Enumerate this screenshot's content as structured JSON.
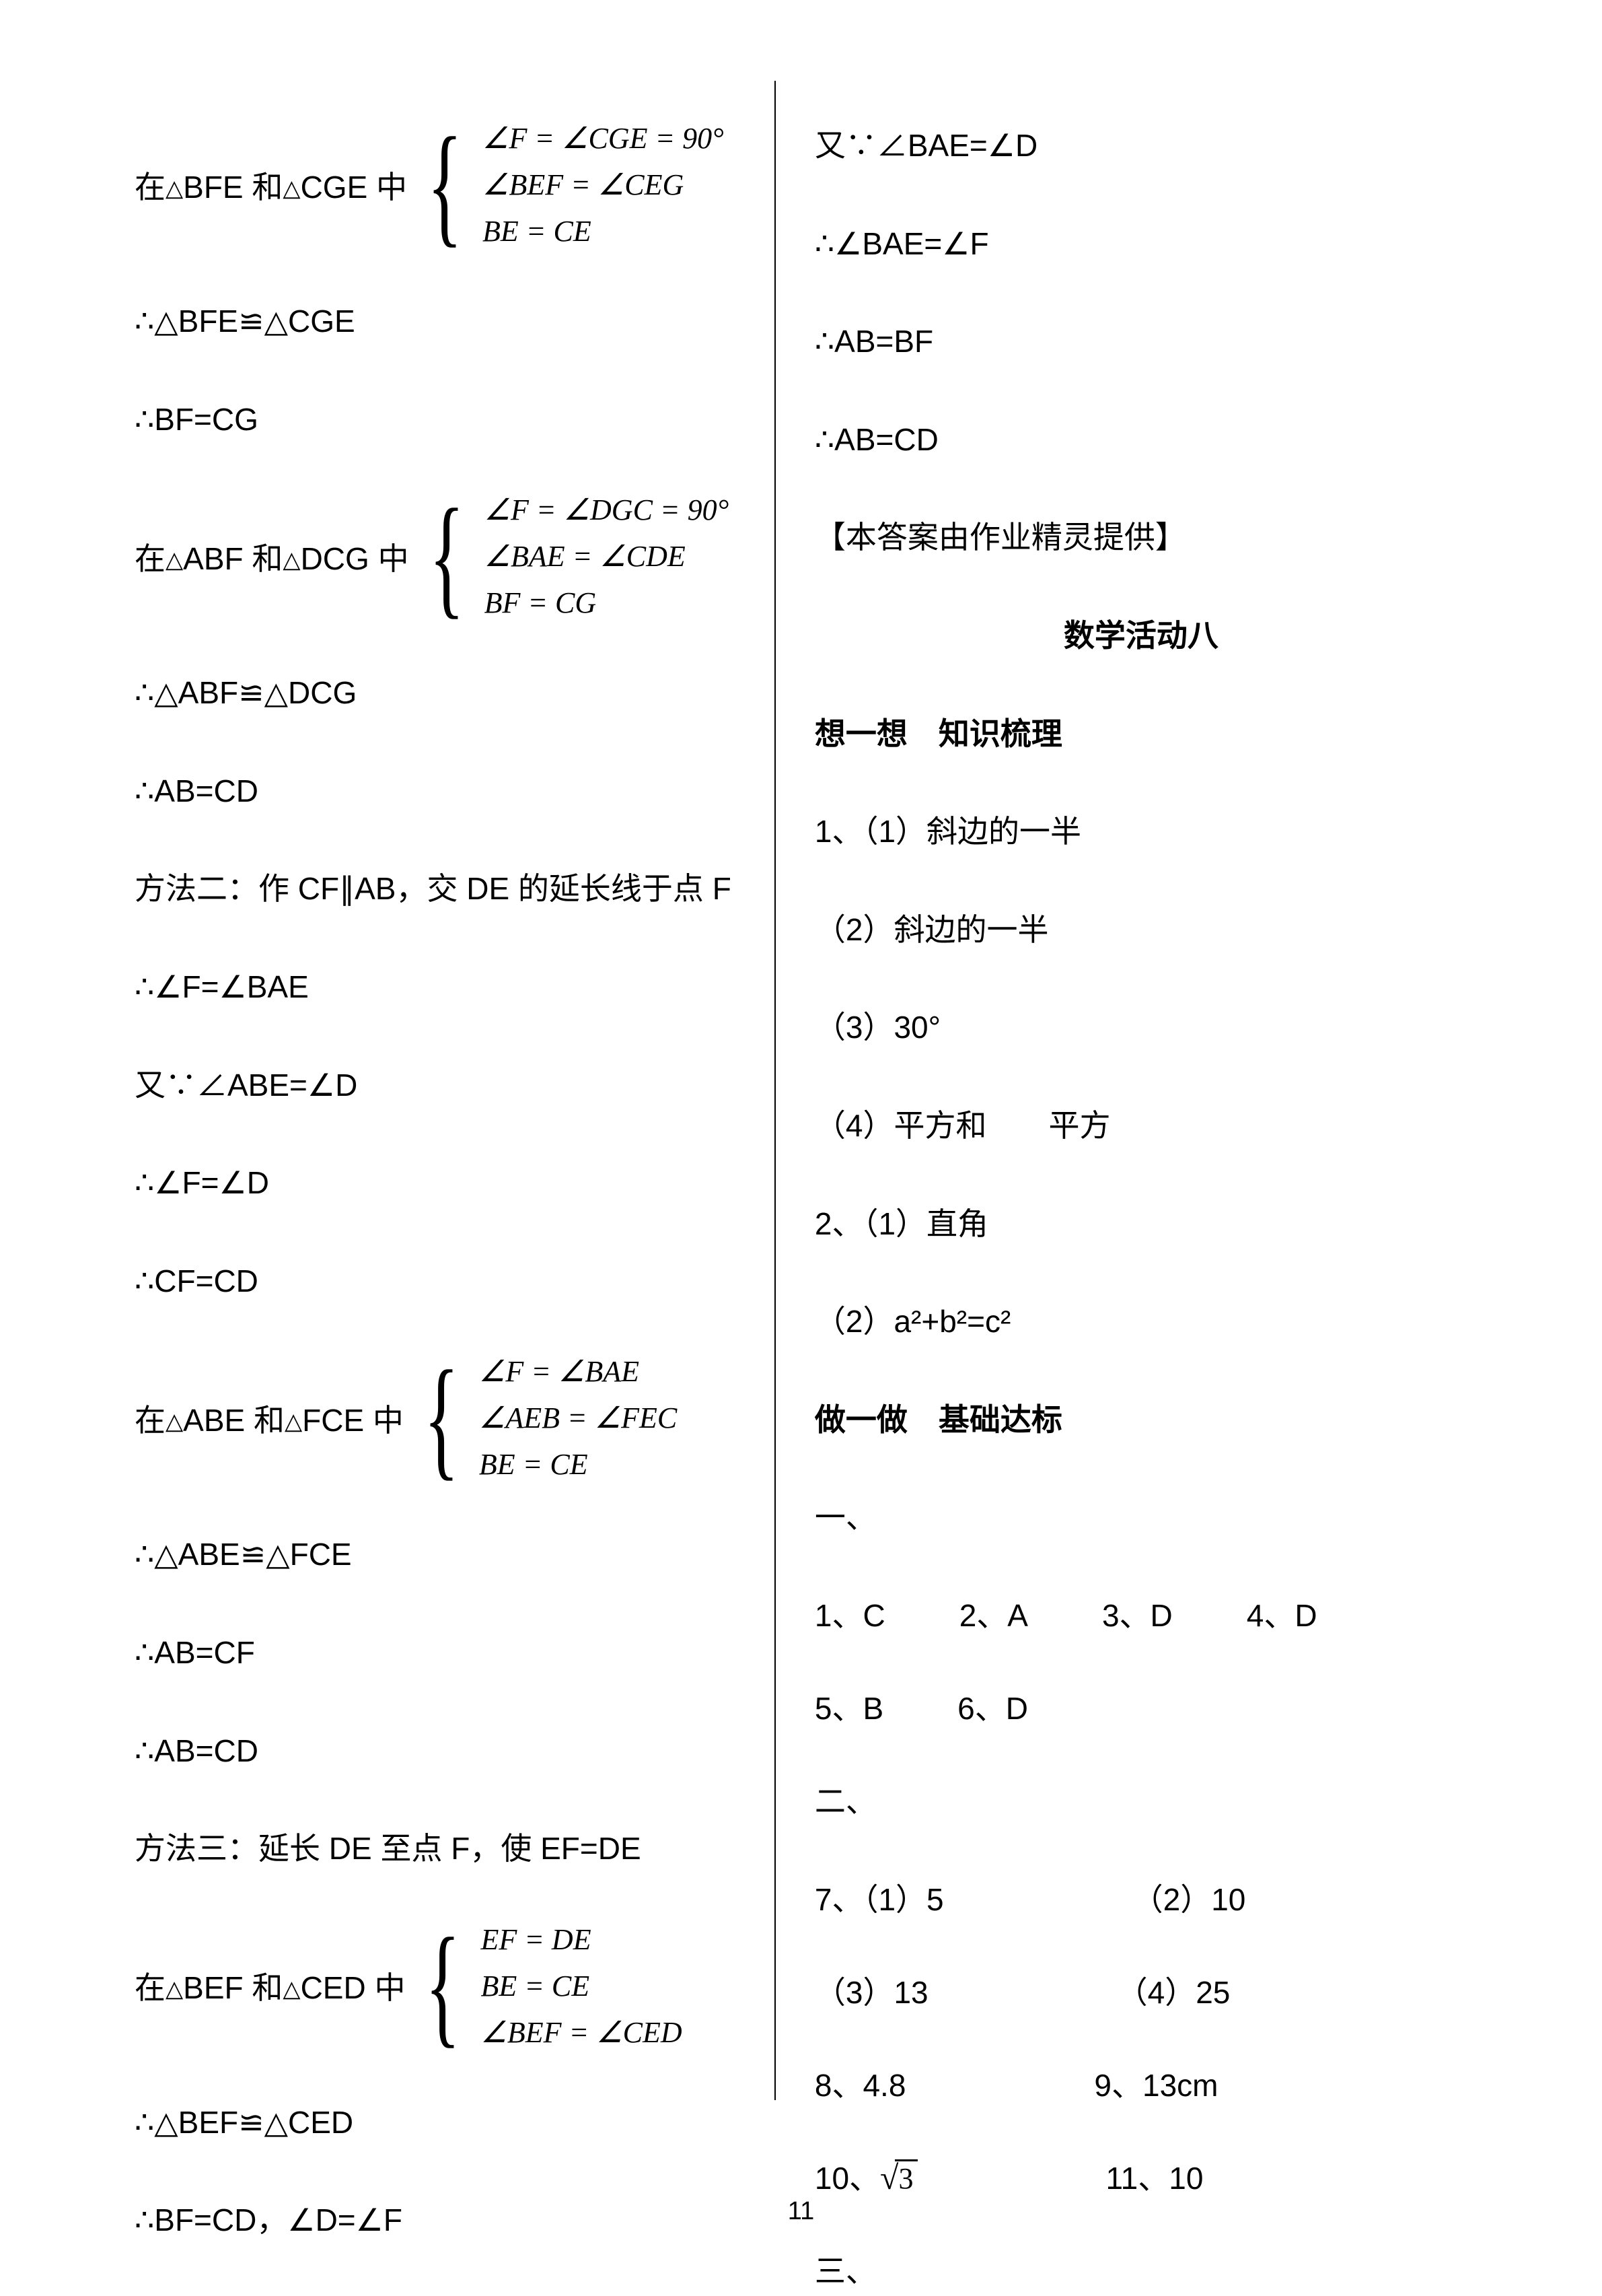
{
  "page_number": "11",
  "left": {
    "block1_prefix_a": "在",
    "block1_prefix_b": "BFE 和",
    "block1_prefix_c": "CGE 中",
    "block1_case1": "∠F  =  ∠CGE  =  90°",
    "block1_case2": "∠BEF  =  ∠CEG",
    "block1_case3": "BE  =  CE",
    "l1": "∴△BFE≌△CGE",
    "l2": "∴BF=CG",
    "block2_prefix_a": "在",
    "block2_prefix_b": "ABF 和",
    "block2_prefix_c": "DCG 中",
    "block2_case1": "∠F  =  ∠DGC  =  90°",
    "block2_case2": "∠BAE  =  ∠CDE",
    "block2_case3": "BF  =  CG",
    "l3": "∴△ABF≌△DCG",
    "l4": "∴AB=CD",
    "l5": "方法二：作 CF∥AB，交 DE 的延长线于点 F",
    "l6": "∴∠F=∠BAE",
    "l7": "又∵∠ABE=∠D",
    "l8": "∴∠F=∠D",
    "l9": "∴CF=CD",
    "block3_prefix_a": "在",
    "block3_prefix_b": "ABE 和",
    "block3_prefix_c": "FCE 中",
    "block3_case1": "∠F  =  ∠BAE",
    "block3_case2": "∠AEB  =  ∠FEC",
    "block3_case3": "BE  =  CE",
    "l10": "∴△ABE≌△FCE",
    "l11": "∴AB=CF",
    "l12": "∴AB=CD",
    "l13": "方法三：延长 DE 至点 F，使 EF=DE",
    "block4_prefix_a": "在",
    "block4_prefix_b": "BEF 和",
    "block4_prefix_c": "CED 中",
    "block4_case1": "EF  =  DE",
    "block4_case2": "BE  =  CE",
    "block4_case3": "∠BEF  =  ∠CED",
    "l14": "∴△BEF≌△CED",
    "l15": "∴BF=CD，∠D=∠F"
  },
  "right": {
    "r1": "又∵∠BAE=∠D",
    "r2": "∴∠BAE=∠F",
    "r3": "∴AB=BF",
    "r4": "∴AB=CD",
    "r5": "【本答案由作业精灵提供】",
    "r6": "数学活动八",
    "r7": "想一想　知识梳理",
    "r8": "1、（1）斜边的一半",
    "r9": "（2）斜边的一半",
    "r10": "（3）30°",
    "r11": "（4）平方和　　平方",
    "r12": "2、（1）直角",
    "r13": "（2）a²+b²=c²",
    "r14": "做一做　基础达标",
    "r15": "一、",
    "ans1_1": "1、C",
    "ans1_2": "2、A",
    "ans1_3": "3、D",
    "ans1_4": "4、D",
    "ans2_1": "5、B",
    "ans2_2": "6、D",
    "r16": "二、",
    "q7a": "7、（1）5",
    "q7b": "（2）10",
    "q7c": "（3）13",
    "q7d": "（4）25",
    "q8": "8、4.8",
    "q9": "9、13cm",
    "q10_prefix": "10、",
    "q10_rad": "3",
    "q11": "11、10",
    "r17": "三、"
  }
}
